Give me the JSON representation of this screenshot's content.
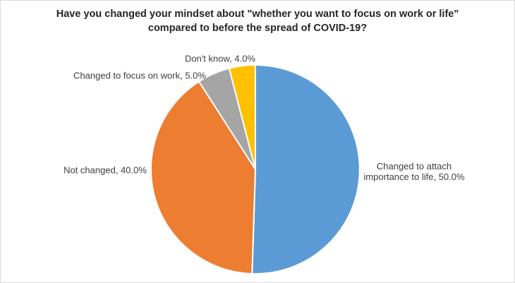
{
  "header": {
    "title_line1": "Have you changed your mindset about \"whether you want to focus on work or life\"",
    "title_line2": "compared to before the spread of COVID-19?"
  },
  "chart_data": {
    "type": "pie",
    "title": "Have you changed your mindset about \"whether you want to focus on work or life\" compared to before the spread of COVID-19?",
    "categories": [
      "Changed to attach importance to life",
      "Not changed",
      "Changed to focus on work",
      "Don't know"
    ],
    "values": [
      50.0,
      40.0,
      5.0,
      4.0
    ],
    "value_suffix": "%",
    "label_format": "category, value%",
    "colors": [
      "#5B9BD5",
      "#ED7D31",
      "#A5A5A5",
      "#FFC000"
    ],
    "slice_separator_color": "#FFFFFF",
    "start_angle_deg": 0,
    "direction": "clockwise",
    "legend_position": "none",
    "background_color": "#FFFFFF",
    "border_color": "#D9D9D9"
  }
}
